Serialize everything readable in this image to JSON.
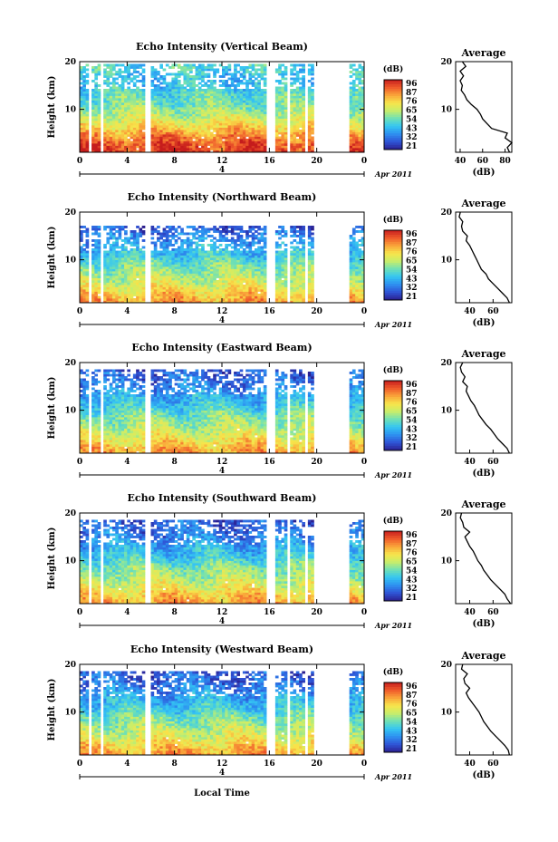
{
  "figure": {
    "xlabel": "Local Time",
    "date_label": "Apr 2011",
    "day_label": "4",
    "colorbar_unit": "(dB)",
    "colorbar_ticks": [
      "96",
      "87",
      "76",
      "65",
      "54",
      "43",
      "32",
      "21"
    ],
    "colormap": [
      "#2b1f8f",
      "#2f54d6",
      "#2d8ff0",
      "#35c6f2",
      "#6fe0b5",
      "#c8ee6a",
      "#f8e44a",
      "#f9a53a",
      "#ef5a2b",
      "#c51c1c"
    ],
    "avg_title": "Average",
    "avg_xlabel": "(dB)"
  },
  "chart_data": [
    {
      "type": "heatmap",
      "title": "Echo Intensity (Vertical Beam)",
      "ylabel": "Height (km)",
      "xlim": [
        0,
        24
      ],
      "ylim": [
        1,
        20
      ],
      "xticks": [
        "0",
        "4",
        "8",
        "12",
        "16",
        "20",
        "0"
      ],
      "yticks": [
        "10",
        "20"
      ],
      "clim": [
        21,
        96
      ],
      "gaps": [
        [
          0.8,
          1.1
        ],
        [
          1.7,
          2.1
        ],
        [
          5.6,
          6.0
        ],
        [
          15.7,
          16.4
        ],
        [
          17.4,
          17.7
        ],
        [
          18.9,
          19.3
        ],
        [
          19.8,
          22.7
        ]
      ],
      "echo_top_km": 19.5,
      "profile_by_height": [
        [
          1,
          92
        ],
        [
          3,
          88
        ],
        [
          5,
          80
        ],
        [
          7,
          70
        ],
        [
          9,
          62
        ],
        [
          11,
          55
        ],
        [
          13,
          52
        ],
        [
          15,
          46
        ],
        [
          17,
          45
        ],
        [
          19,
          50
        ],
        [
          20,
          48
        ]
      ],
      "average": {
        "xticks": [
          "40",
          "60",
          "80"
        ],
        "xlim": [
          36,
          86
        ],
        "ylim": [
          1,
          20
        ],
        "yticks": [
          "10",
          "20"
        ],
        "profile": [
          [
            1,
            84
          ],
          [
            2,
            82
          ],
          [
            3,
            86
          ],
          [
            4,
            80
          ],
          [
            5,
            82
          ],
          [
            6,
            68
          ],
          [
            7,
            64
          ],
          [
            8,
            60
          ],
          [
            9,
            58
          ],
          [
            10,
            55
          ],
          [
            11,
            50
          ],
          [
            12,
            46
          ],
          [
            13,
            44
          ],
          [
            14,
            41
          ],
          [
            15,
            42
          ],
          [
            16,
            40
          ],
          [
            17,
            43
          ],
          [
            18,
            40
          ],
          [
            19,
            45
          ],
          [
            20,
            42
          ]
        ]
      }
    },
    {
      "type": "heatmap",
      "title": "Echo Intensity (Northward Beam)",
      "ylabel": "Height (km)",
      "xlim": [
        0,
        24
      ],
      "ylim": [
        1,
        20
      ],
      "xticks": [
        "0",
        "4",
        "8",
        "12",
        "16",
        "20",
        "0"
      ],
      "yticks": [
        "10",
        "20"
      ],
      "clim": [
        21,
        96
      ],
      "gaps": [
        [
          0.8,
          1.1
        ],
        [
          1.7,
          2.1
        ],
        [
          5.6,
          6.0
        ],
        [
          15.7,
          16.4
        ],
        [
          17.4,
          17.7
        ],
        [
          18.9,
          19.3
        ],
        [
          19.8,
          22.7
        ]
      ],
      "echo_top_km": 17,
      "profile_by_height": [
        [
          1,
          80
        ],
        [
          3,
          74
        ],
        [
          5,
          66
        ],
        [
          7,
          60
        ],
        [
          9,
          55
        ],
        [
          11,
          47
        ],
        [
          13,
          42
        ],
        [
          15,
          36
        ],
        [
          17,
          30
        ]
      ],
      "average": {
        "xticks": [
          "40",
          "60"
        ],
        "xlim": [
          28,
          76
        ],
        "ylim": [
          1,
          20
        ],
        "yticks": [
          "10",
          "20"
        ],
        "profile": [
          [
            1,
            74
          ],
          [
            2,
            72
          ],
          [
            3,
            68
          ],
          [
            4,
            64
          ],
          [
            5,
            60
          ],
          [
            6,
            56
          ],
          [
            7,
            54
          ],
          [
            8,
            50
          ],
          [
            9,
            48
          ],
          [
            10,
            46
          ],
          [
            11,
            44
          ],
          [
            12,
            42
          ],
          [
            13,
            40
          ],
          [
            14,
            37
          ],
          [
            15,
            38
          ],
          [
            16,
            34
          ],
          [
            17,
            33
          ],
          [
            18,
            34
          ],
          [
            19,
            31
          ],
          [
            20,
            32
          ]
        ]
      }
    },
    {
      "type": "heatmap",
      "title": "Echo Intensity (Eastward Beam)",
      "ylabel": "Height (km)",
      "xlim": [
        0,
        24
      ],
      "ylim": [
        1,
        20
      ],
      "xticks": [
        "0",
        "4",
        "8",
        "12",
        "16",
        "20",
        "0"
      ],
      "yticks": [
        "10",
        "20"
      ],
      "clim": [
        21,
        96
      ],
      "gaps": [
        [
          0.8,
          1.1
        ],
        [
          1.7,
          2.1
        ],
        [
          5.6,
          6.0
        ],
        [
          15.7,
          16.4
        ],
        [
          17.4,
          17.7
        ],
        [
          18.9,
          19.3
        ],
        [
          19.8,
          22.7
        ]
      ],
      "echo_top_km": 18.5,
      "profile_by_height": [
        [
          1,
          80
        ],
        [
          3,
          74
        ],
        [
          5,
          66
        ],
        [
          7,
          60
        ],
        [
          9,
          55
        ],
        [
          11,
          47
        ],
        [
          13,
          42
        ],
        [
          15,
          36
        ],
        [
          17,
          32
        ],
        [
          18.5,
          30
        ]
      ],
      "average": {
        "xticks": [
          "40",
          "60"
        ],
        "xlim": [
          28,
          76
        ],
        "ylim": [
          1,
          20
        ],
        "yticks": [
          "10",
          "20"
        ],
        "profile": [
          [
            1,
            74
          ],
          [
            2,
            72
          ],
          [
            3,
            68
          ],
          [
            4,
            64
          ],
          [
            5,
            61
          ],
          [
            6,
            58
          ],
          [
            7,
            54
          ],
          [
            8,
            51
          ],
          [
            9,
            48
          ],
          [
            10,
            46
          ],
          [
            11,
            44
          ],
          [
            12,
            41
          ],
          [
            13,
            39
          ],
          [
            14,
            37
          ],
          [
            15,
            38
          ],
          [
            16,
            34
          ],
          [
            17,
            36
          ],
          [
            18,
            33
          ],
          [
            19,
            32
          ],
          [
            20,
            34
          ]
        ]
      }
    },
    {
      "type": "heatmap",
      "title": "Echo Intensity (Southward Beam)",
      "ylabel": "Height (km)",
      "xlim": [
        0,
        24
      ],
      "ylim": [
        1,
        20
      ],
      "xticks": [
        "0",
        "4",
        "8",
        "12",
        "16",
        "20",
        "0"
      ],
      "yticks": [
        "10",
        "20"
      ],
      "clim": [
        21,
        96
      ],
      "gaps": [
        [
          0.8,
          1.1
        ],
        [
          1.7,
          2.1
        ],
        [
          5.6,
          6.0
        ],
        [
          15.7,
          16.4
        ],
        [
          17.4,
          17.7
        ],
        [
          18.9,
          19.3
        ],
        [
          19.8,
          22.7
        ]
      ],
      "echo_top_km": 18.5,
      "profile_by_height": [
        [
          1,
          80
        ],
        [
          3,
          74
        ],
        [
          5,
          66
        ],
        [
          7,
          60
        ],
        [
          9,
          55
        ],
        [
          11,
          47
        ],
        [
          13,
          42
        ],
        [
          15,
          36
        ],
        [
          17,
          32
        ],
        [
          18.5,
          30
        ]
      ],
      "average": {
        "xticks": [
          "40",
          "60"
        ],
        "xlim": [
          28,
          76
        ],
        "ylim": [
          1,
          20
        ],
        "yticks": [
          "10",
          "20"
        ],
        "profile": [
          [
            1,
            75
          ],
          [
            2,
            72
          ],
          [
            3,
            70
          ],
          [
            4,
            66
          ],
          [
            5,
            62
          ],
          [
            6,
            58
          ],
          [
            7,
            55
          ],
          [
            8,
            52
          ],
          [
            9,
            50
          ],
          [
            10,
            47
          ],
          [
            11,
            45
          ],
          [
            12,
            43
          ],
          [
            13,
            40
          ],
          [
            14,
            38
          ],
          [
            15,
            36
          ],
          [
            16,
            40
          ],
          [
            17,
            35
          ],
          [
            18,
            34
          ],
          [
            19,
            32
          ],
          [
            20,
            33
          ]
        ]
      }
    },
    {
      "type": "heatmap",
      "title": "Echo Intensity (Westward Beam)",
      "ylabel": "Height (km)",
      "xlim": [
        0,
        24
      ],
      "ylim": [
        1,
        20
      ],
      "xticks": [
        "0",
        "4",
        "8",
        "12",
        "16",
        "20",
        "0"
      ],
      "yticks": [
        "10",
        "20"
      ],
      "clim": [
        21,
        96
      ],
      "gaps": [
        [
          0.8,
          1.1
        ],
        [
          1.7,
          2.1
        ],
        [
          5.6,
          6.0
        ],
        [
          15.7,
          16.4
        ],
        [
          17.4,
          17.7
        ],
        [
          18.9,
          19.3
        ],
        [
          19.8,
          22.7
        ]
      ],
      "echo_top_km": 18.5,
      "profile_by_height": [
        [
          1,
          80
        ],
        [
          3,
          74
        ],
        [
          5,
          66
        ],
        [
          7,
          60
        ],
        [
          9,
          55
        ],
        [
          11,
          47
        ],
        [
          13,
          42
        ],
        [
          15,
          36
        ],
        [
          17,
          32
        ],
        [
          18.5,
          30
        ]
      ],
      "average": {
        "xticks": [
          "40",
          "60"
        ],
        "xlim": [
          28,
          76
        ],
        "ylim": [
          1,
          20
        ],
        "yticks": [
          "10",
          "20"
        ],
        "profile": [
          [
            1,
            74
          ],
          [
            2,
            73
          ],
          [
            3,
            70
          ],
          [
            4,
            66
          ],
          [
            5,
            62
          ],
          [
            6,
            58
          ],
          [
            7,
            55
          ],
          [
            8,
            52
          ],
          [
            9,
            50
          ],
          [
            10,
            48
          ],
          [
            11,
            45
          ],
          [
            12,
            42
          ],
          [
            13,
            39
          ],
          [
            14,
            37
          ],
          [
            15,
            40
          ],
          [
            16,
            36
          ],
          [
            17,
            35
          ],
          [
            18,
            38
          ],
          [
            19,
            33
          ],
          [
            20,
            34
          ]
        ]
      }
    }
  ]
}
